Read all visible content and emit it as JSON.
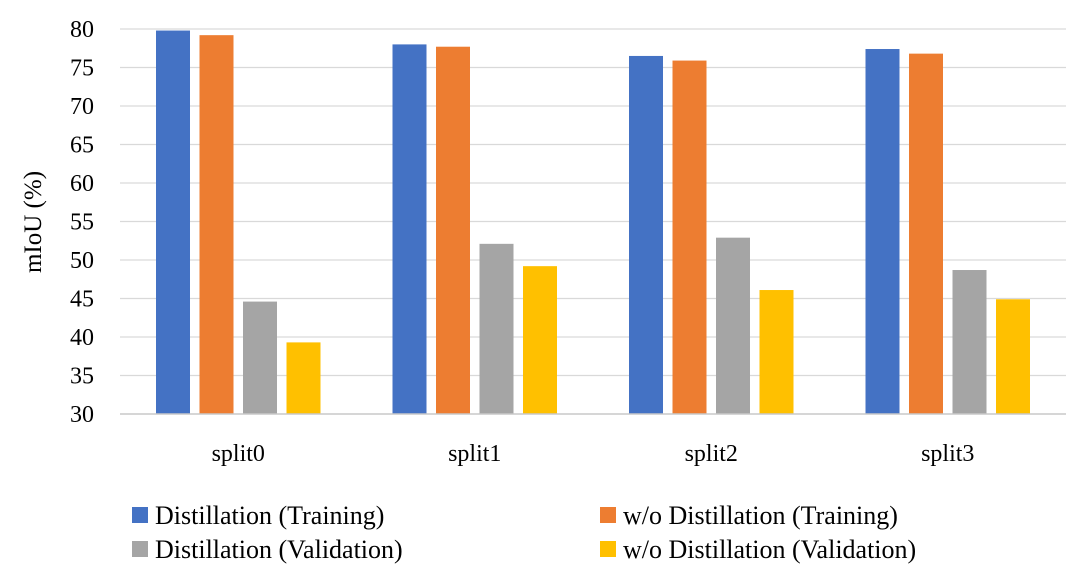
{
  "chart_data": {
    "type": "bar",
    "ylabel": "mIoU (%)",
    "xlabel": "",
    "title": "",
    "ylim": [
      30,
      80
    ],
    "yticks": [
      30,
      35,
      40,
      45,
      50,
      55,
      60,
      65,
      70,
      75,
      80
    ],
    "grid": "horizontal",
    "legend_position": "bottom",
    "categories": [
      "split0",
      "split1",
      "split2",
      "split3"
    ],
    "series": [
      {
        "name": "Distillation (Training)",
        "color": "#4472C4",
        "values": [
          79.8,
          78.0,
          76.5,
          77.4
        ]
      },
      {
        "name": "w/o Distillation (Training)",
        "color": "#ED7D31",
        "values": [
          79.2,
          77.7,
          75.9,
          76.8
        ]
      },
      {
        "name": "Distillation (Validation)",
        "color": "#A5A5A5",
        "values": [
          44.6,
          52.1,
          52.9,
          48.7
        ]
      },
      {
        "name": "w/o Distillation (Validation)",
        "color": "#FFC000",
        "values": [
          39.3,
          49.2,
          46.1,
          44.9
        ]
      }
    ]
  }
}
